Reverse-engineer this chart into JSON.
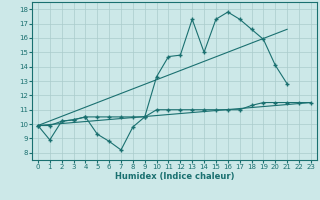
{
  "xlabel": "Humidex (Indice chaleur)",
  "bg_color": "#cce8e8",
  "line_color": "#1a7070",
  "grid_color": "#aacccc",
  "xlim": [
    -0.5,
    23.5
  ],
  "ylim": [
    7.5,
    18.5
  ],
  "xticks": [
    0,
    1,
    2,
    3,
    4,
    5,
    6,
    7,
    8,
    9,
    10,
    11,
    12,
    13,
    14,
    15,
    16,
    17,
    18,
    19,
    20,
    21,
    22,
    23
  ],
  "yticks": [
    8,
    9,
    10,
    11,
    12,
    13,
    14,
    15,
    16,
    17,
    18
  ],
  "line1_x": [
    0,
    1,
    2,
    3,
    4,
    5,
    6,
    7,
    8,
    9,
    10,
    11,
    12,
    13,
    14,
    15,
    16,
    17,
    18,
    19,
    20,
    21
  ],
  "line1_y": [
    9.9,
    8.9,
    10.2,
    10.3,
    10.5,
    9.3,
    8.8,
    8.2,
    9.8,
    10.5,
    13.3,
    14.7,
    14.8,
    17.3,
    15.0,
    17.3,
    17.8,
    17.3,
    16.6,
    15.9,
    14.1,
    12.8
  ],
  "line2_x": [
    0,
    1,
    2,
    3,
    4,
    5,
    6,
    7,
    8,
    9,
    10,
    11,
    12,
    13,
    14,
    15,
    16,
    17,
    18,
    19,
    20,
    21,
    22,
    23
  ],
  "line2_y": [
    9.9,
    9.9,
    10.2,
    10.3,
    10.5,
    10.5,
    10.5,
    10.5,
    10.5,
    10.5,
    11.0,
    11.0,
    11.0,
    11.0,
    11.0,
    11.0,
    11.0,
    11.0,
    11.3,
    11.5,
    11.5,
    11.5,
    11.5,
    11.5
  ],
  "line3_x": [
    0,
    21
  ],
  "line3_y": [
    9.9,
    16.6
  ],
  "line4_x": [
    0,
    23
  ],
  "line4_y": [
    9.9,
    11.5
  ]
}
